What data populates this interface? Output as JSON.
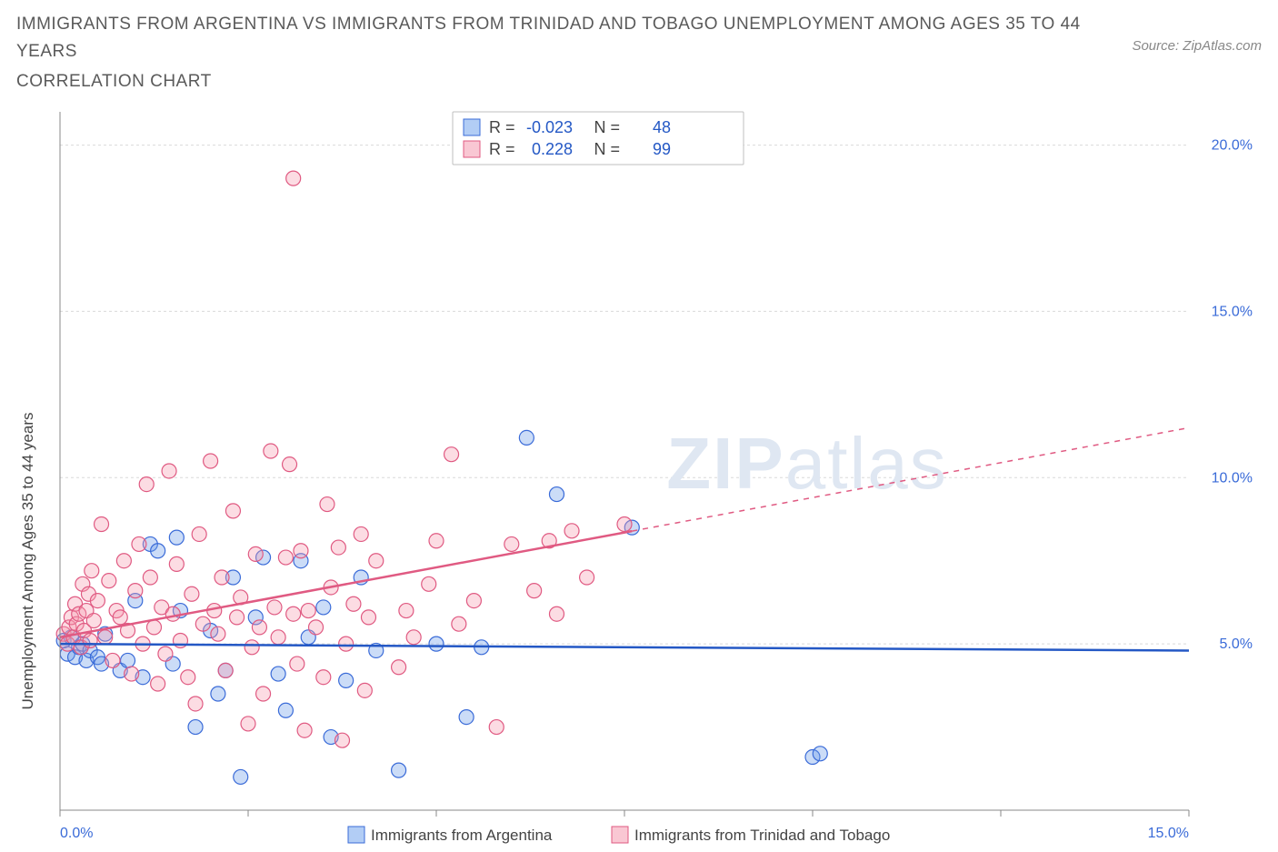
{
  "header": {
    "title": "IMMIGRANTS FROM ARGENTINA VS IMMIGRANTS FROM TRINIDAD AND TOBAGO UNEMPLOYMENT AMONG AGES 35 TO 44 YEARS",
    "subtitle": "CORRELATION CHART",
    "source": "Source: ZipAtlas.com"
  },
  "chart": {
    "type": "scatter",
    "background_color": "#ffffff",
    "grid_color": "#d9d9d9",
    "axis_color": "#888888",
    "xlim": [
      0,
      15
    ],
    "ylim": [
      0,
      21
    ],
    "x_ticks": [
      0,
      2.5,
      5,
      7.5,
      10,
      12.5,
      15
    ],
    "x_tick_labels_shown": {
      "0": "0.0%",
      "15": "15.0%"
    },
    "y_ticks": [
      5,
      10,
      15,
      20
    ],
    "y_tick_labels": {
      "5": "5.0%",
      "10": "10.0%",
      "15": "15.0%",
      "20": "20.0%"
    },
    "y_axis_title": "Unemployment Among Ages 35 to 44 years",
    "tick_label_color": "#3a6bd8",
    "marker_radius": 8,
    "watermark": {
      "text_bold": "ZIP",
      "text_light": "atlas",
      "color": "#dfe7f2"
    },
    "series": [
      {
        "id": "argentina",
        "label": "Immigrants from Argentina",
        "color_fill": "#6a9be8",
        "color_stroke": "#3a6bd8",
        "R": "-0.023",
        "N": "48",
        "trend": {
          "y_at_x0": 5.0,
          "y_at_xmax": 4.8,
          "solid_until_x": 15
        },
        "points": [
          [
            0.05,
            5.1
          ],
          [
            0.1,
            4.7
          ],
          [
            0.15,
            5.2
          ],
          [
            0.2,
            4.6
          ],
          [
            0.25,
            4.9
          ],
          [
            0.3,
            5.0
          ],
          [
            0.35,
            4.5
          ],
          [
            0.4,
            4.8
          ],
          [
            0.5,
            4.6
          ],
          [
            0.55,
            4.4
          ],
          [
            0.6,
            5.3
          ],
          [
            0.8,
            4.2
          ],
          [
            0.9,
            4.5
          ],
          [
            1.0,
            6.3
          ],
          [
            1.1,
            4.0
          ],
          [
            1.2,
            8.0
          ],
          [
            1.3,
            7.8
          ],
          [
            1.5,
            4.4
          ],
          [
            1.55,
            8.2
          ],
          [
            1.6,
            6.0
          ],
          [
            1.8,
            2.5
          ],
          [
            2.0,
            5.4
          ],
          [
            2.1,
            3.5
          ],
          [
            2.2,
            4.2
          ],
          [
            2.3,
            7.0
          ],
          [
            2.4,
            1.0
          ],
          [
            2.6,
            5.8
          ],
          [
            2.7,
            7.6
          ],
          [
            2.9,
            4.1
          ],
          [
            3.0,
            3.0
          ],
          [
            3.2,
            7.5
          ],
          [
            3.3,
            5.2
          ],
          [
            3.5,
            6.1
          ],
          [
            3.6,
            2.2
          ],
          [
            3.8,
            3.9
          ],
          [
            4.0,
            7.0
          ],
          [
            4.2,
            4.8
          ],
          [
            4.5,
            1.2
          ],
          [
            5.0,
            5.0
          ],
          [
            5.4,
            2.8
          ],
          [
            5.6,
            4.9
          ],
          [
            6.2,
            11.2
          ],
          [
            6.6,
            9.5
          ],
          [
            7.6,
            8.5
          ],
          [
            10.0,
            1.6
          ],
          [
            10.1,
            1.7
          ]
        ]
      },
      {
        "id": "trinidad",
        "label": "Immigrants from Trinidad and Tobago",
        "color_fill": "#f59ab0",
        "color_stroke": "#e05a82",
        "R": "0.228",
        "N": "99",
        "trend": {
          "y_at_x0": 5.2,
          "y_at_xmax": 11.5,
          "solid_until_x": 7.6
        },
        "points": [
          [
            0.05,
            5.3
          ],
          [
            0.1,
            5.0
          ],
          [
            0.12,
            5.5
          ],
          [
            0.15,
            5.8
          ],
          [
            0.18,
            5.2
          ],
          [
            0.2,
            6.2
          ],
          [
            0.22,
            5.6
          ],
          [
            0.25,
            5.9
          ],
          [
            0.28,
            4.9
          ],
          [
            0.3,
            6.8
          ],
          [
            0.32,
            5.4
          ],
          [
            0.35,
            6.0
          ],
          [
            0.38,
            6.5
          ],
          [
            0.4,
            5.1
          ],
          [
            0.42,
            7.2
          ],
          [
            0.45,
            5.7
          ],
          [
            0.5,
            6.3
          ],
          [
            0.55,
            8.6
          ],
          [
            0.6,
            5.2
          ],
          [
            0.65,
            6.9
          ],
          [
            0.7,
            4.5
          ],
          [
            0.75,
            6.0
          ],
          [
            0.8,
            5.8
          ],
          [
            0.85,
            7.5
          ],
          [
            0.9,
            5.4
          ],
          [
            0.95,
            4.1
          ],
          [
            1.0,
            6.6
          ],
          [
            1.05,
            8.0
          ],
          [
            1.1,
            5.0
          ],
          [
            1.15,
            9.8
          ],
          [
            1.2,
            7.0
          ],
          [
            1.25,
            5.5
          ],
          [
            1.3,
            3.8
          ],
          [
            1.35,
            6.1
          ],
          [
            1.4,
            4.7
          ],
          [
            1.45,
            10.2
          ],
          [
            1.5,
            5.9
          ],
          [
            1.55,
            7.4
          ],
          [
            1.6,
            5.1
          ],
          [
            1.7,
            4.0
          ],
          [
            1.75,
            6.5
          ],
          [
            1.8,
            3.2
          ],
          [
            1.85,
            8.3
          ],
          [
            1.9,
            5.6
          ],
          [
            2.0,
            10.5
          ],
          [
            2.05,
            6.0
          ],
          [
            2.1,
            5.3
          ],
          [
            2.15,
            7.0
          ],
          [
            2.2,
            4.2
          ],
          [
            2.3,
            9.0
          ],
          [
            2.35,
            5.8
          ],
          [
            2.4,
            6.4
          ],
          [
            2.5,
            2.6
          ],
          [
            2.55,
            4.9
          ],
          [
            2.6,
            7.7
          ],
          [
            2.65,
            5.5
          ],
          [
            2.7,
            3.5
          ],
          [
            2.8,
            10.8
          ],
          [
            2.85,
            6.1
          ],
          [
            2.9,
            5.2
          ],
          [
            3.0,
            7.6
          ],
          [
            3.05,
            10.4
          ],
          [
            3.1,
            5.9
          ],
          [
            3.1,
            19.0
          ],
          [
            3.15,
            4.4
          ],
          [
            3.2,
            7.8
          ],
          [
            3.25,
            2.4
          ],
          [
            3.3,
            6.0
          ],
          [
            3.4,
            5.5
          ],
          [
            3.5,
            4.0
          ],
          [
            3.55,
            9.2
          ],
          [
            3.6,
            6.7
          ],
          [
            3.7,
            7.9
          ],
          [
            3.75,
            2.1
          ],
          [
            3.8,
            5.0
          ],
          [
            3.9,
            6.2
          ],
          [
            4.0,
            8.3
          ],
          [
            4.05,
            3.6
          ],
          [
            4.1,
            5.8
          ],
          [
            4.2,
            7.5
          ],
          [
            4.5,
            4.3
          ],
          [
            4.6,
            6.0
          ],
          [
            4.7,
            5.2
          ],
          [
            4.9,
            6.8
          ],
          [
            5.0,
            8.1
          ],
          [
            5.2,
            10.7
          ],
          [
            5.3,
            5.6
          ],
          [
            5.5,
            6.3
          ],
          [
            5.8,
            2.5
          ],
          [
            6.0,
            8.0
          ],
          [
            6.3,
            6.6
          ],
          [
            6.5,
            8.1
          ],
          [
            6.6,
            5.9
          ],
          [
            6.8,
            8.4
          ],
          [
            7.0,
            7.0
          ],
          [
            7.5,
            8.6
          ]
        ]
      }
    ],
    "top_legend": {
      "rows": [
        {
          "series": "argentina",
          "R_label": "R =",
          "N_label": "N ="
        },
        {
          "series": "trinidad",
          "R_label": "R =",
          "N_label": "N ="
        }
      ]
    }
  }
}
